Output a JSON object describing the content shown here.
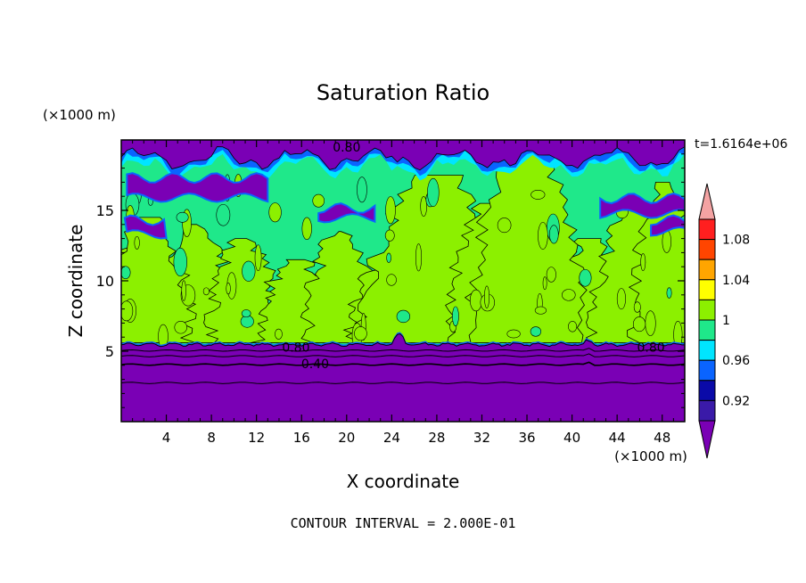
{
  "chart_data": {
    "type": "heatmap",
    "title": "Saturation Ratio",
    "xlabel": "X coordinate",
    "ylabel": "Z coordinate",
    "x_unit": "(×1000 m)",
    "y_unit": "(×1000 m)",
    "time_label": "t=1.6164e+06",
    "footer": "CONTOUR INTERVAL = 2.000E-01",
    "xlim": [
      0,
      50
    ],
    "ylim": [
      0,
      20
    ],
    "x_ticks": [
      4,
      8,
      12,
      16,
      20,
      24,
      28,
      32,
      36,
      40,
      44,
      48
    ],
    "y_ticks": [
      5,
      10,
      15
    ],
    "grid": false,
    "contour_labels": [
      {
        "text": "0.80",
        "x": 20,
        "y": 19.5
      },
      {
        "text": "0.80",
        "x": 15.5,
        "y": 5.3
      },
      {
        "text": "0.40",
        "x": 17.2,
        "y": 4.1
      },
      {
        "text": "0.80",
        "x": 47,
        "y": 5.3
      }
    ],
    "colorbar": {
      "labels": [
        "1.08",
        "1.04",
        "1",
        "0.96",
        "0.92"
      ],
      "levels": [
        0.9,
        0.92,
        0.94,
        0.96,
        0.98,
        1.0,
        1.02,
        1.04,
        1.06,
        1.08,
        1.1
      ],
      "colors": [
        "#7a00b5",
        "#3a1aa8",
        "#0a0aa8",
        "#0a64ff",
        "#00e5ff",
        "#1fe88a",
        "#8cf000",
        "#ffff00",
        "#ffa500",
        "#ff4500",
        "#ff1f1f",
        "#f4a3a3"
      ],
      "low_color": "#7a00b5",
      "high_color": "#f4a3a3"
    },
    "regions": {
      "lower_layer_top_z": 5.6,
      "lower_layer_color": "#7a00b5",
      "background_color": "#1fe88a",
      "supersaturated_color": "#8cf000",
      "upper_dry_color": "#7a00b5"
    }
  }
}
